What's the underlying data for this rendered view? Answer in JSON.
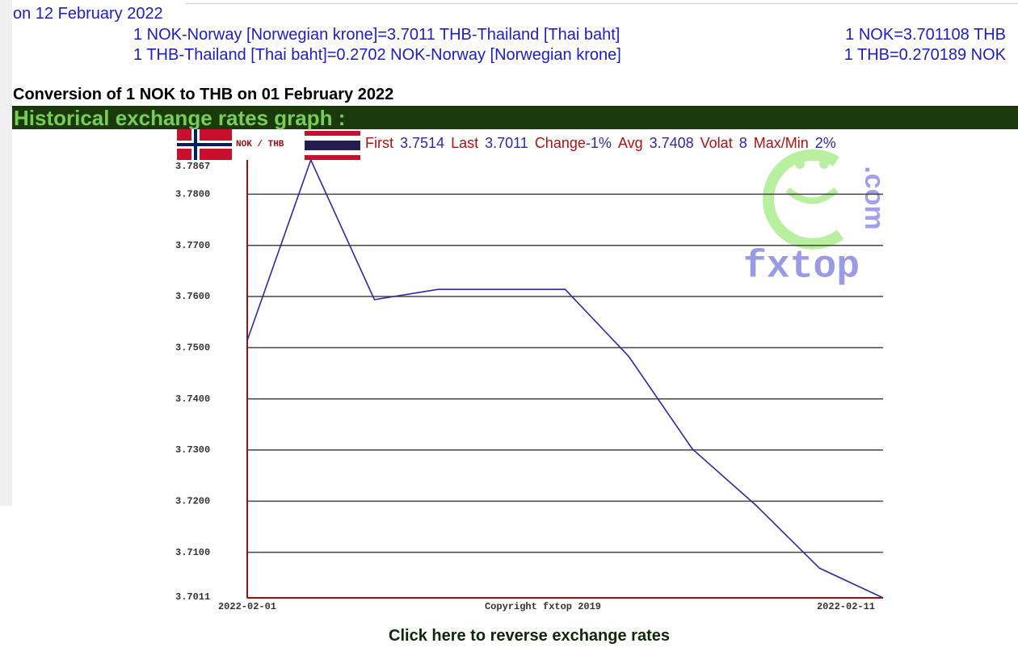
{
  "header": {
    "date_line": "on 12 February 2022",
    "rate_lines": [
      {
        "left": "1 NOK-Norway [Norwegian krone]=3.7011 THB-Thailand [Thai baht]",
        "right": "1 NOK=3.701108 THB"
      },
      {
        "left": "1 THB-Thailand [Thai baht]=0.2702 NOK-Norway [Norwegian krone]",
        "right": "1 THB=0.270189 NOK"
      }
    ],
    "conversion_title": "Conversion of 1 NOK to THB on 01 February 2022",
    "graph_banner": "Historical exchange rates graph :"
  },
  "chart_data": {
    "type": "line",
    "pair_label": "NOK / THB",
    "stats": [
      {
        "label": "First",
        "value": "3.7514"
      },
      {
        "label": "Last",
        "value": "3.7011"
      },
      {
        "label": "Change",
        "value": "-1%"
      },
      {
        "label": "Avg",
        "value": "3.7408"
      },
      {
        "label": "Volat",
        "value": "8"
      },
      {
        "label": "Max/Min",
        "value": "2%"
      }
    ],
    "categories": [
      "2022-02-01",
      null,
      null,
      null,
      null,
      null,
      null,
      null,
      null,
      null,
      "2022-02-11"
    ],
    "values": [
      3.7514,
      3.7867,
      3.7594,
      3.7614,
      3.7614,
      3.7614,
      3.7483,
      3.7302,
      3.7192,
      3.7069,
      3.7011
    ],
    "color": "#2a2aa8",
    "ylim": [
      3.7011,
      3.7867
    ],
    "yticks": [
      {
        "value": 3.7011,
        "label": "3.7011"
      },
      {
        "value": 3.71,
        "label": "3.7100"
      },
      {
        "value": 3.72,
        "label": "3.7200"
      },
      {
        "value": 3.73,
        "label": "3.7300"
      },
      {
        "value": 3.74,
        "label": "3.7400"
      },
      {
        "value": 3.75,
        "label": "3.7500"
      },
      {
        "value": 3.76,
        "label": "3.7600"
      },
      {
        "value": 3.77,
        "label": "3.7700"
      },
      {
        "value": 3.78,
        "label": "3.7800"
      },
      {
        "value": 3.7867,
        "label": "3.7867"
      }
    ],
    "grid": true,
    "copyright": "Copyright fxtop 2019",
    "watermark": "fxtop",
    "watermark_suffix": ".com"
  },
  "footer": {
    "reverse_link": "Click here to reverse exchange rates"
  }
}
